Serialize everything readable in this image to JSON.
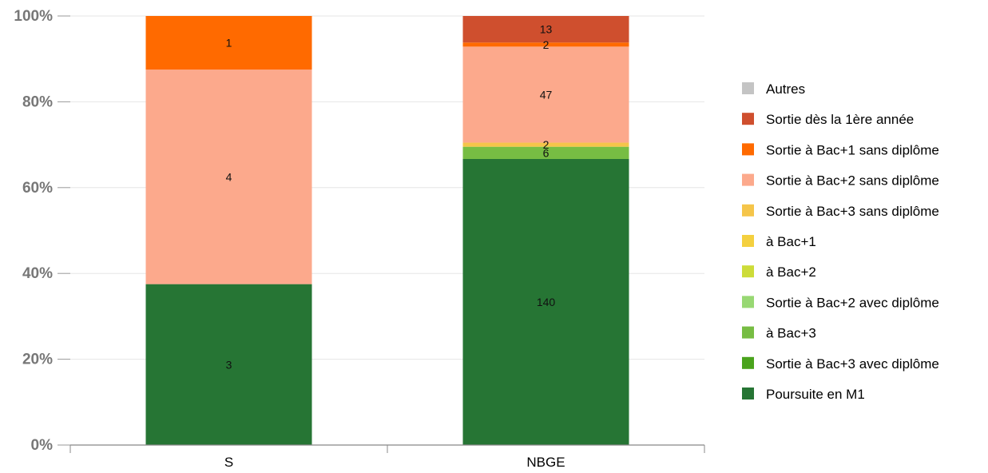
{
  "chart_data": {
    "type": "bar",
    "stacked": true,
    "normalized": true,
    "categories": [
      "S",
      "NBGE"
    ],
    "y_ticks": [
      "0%",
      "20%",
      "40%",
      "60%",
      "80%",
      "100%"
    ],
    "ylim": [
      0,
      100
    ],
    "grid": true,
    "legend_position": "right",
    "series": [
      {
        "name": "Poursuite en M1",
        "color": "#267534",
        "values": [
          3,
          140
        ]
      },
      {
        "name": "Sortie à Bac+3 avec diplôme",
        "color": "#4aa31c",
        "values": [
          0,
          0
        ]
      },
      {
        "name": "à Bac+3",
        "color": "#77bd43",
        "values": [
          0,
          6
        ]
      },
      {
        "name": "Sortie à Bac+2 avec diplôme",
        "color": "#98d873",
        "values": [
          0,
          0
        ]
      },
      {
        "name": "à Bac+2",
        "color": "#cddc39",
        "values": [
          0,
          0
        ]
      },
      {
        "name": "à Bac+1",
        "color": "#f4d03f",
        "values": [
          0,
          0
        ]
      },
      {
        "name": "Sortie à Bac+3 sans diplôme",
        "color": "#f5c54a",
        "values": [
          0,
          2
        ]
      },
      {
        "name": "Sortie à Bac+2 sans diplôme",
        "color": "#fca98c",
        "values": [
          4,
          47
        ]
      },
      {
        "name": "Sortie à Bac+1 sans diplôme",
        "color": "#ff6a00",
        "values": [
          1,
          2
        ]
      },
      {
        "name": "Sortie dès la 1ère année",
        "color": "#cf4f2e",
        "values": [
          0,
          13
        ]
      },
      {
        "name": "Autres",
        "color": "#c4c4c4",
        "values": [
          0,
          0
        ]
      }
    ]
  }
}
